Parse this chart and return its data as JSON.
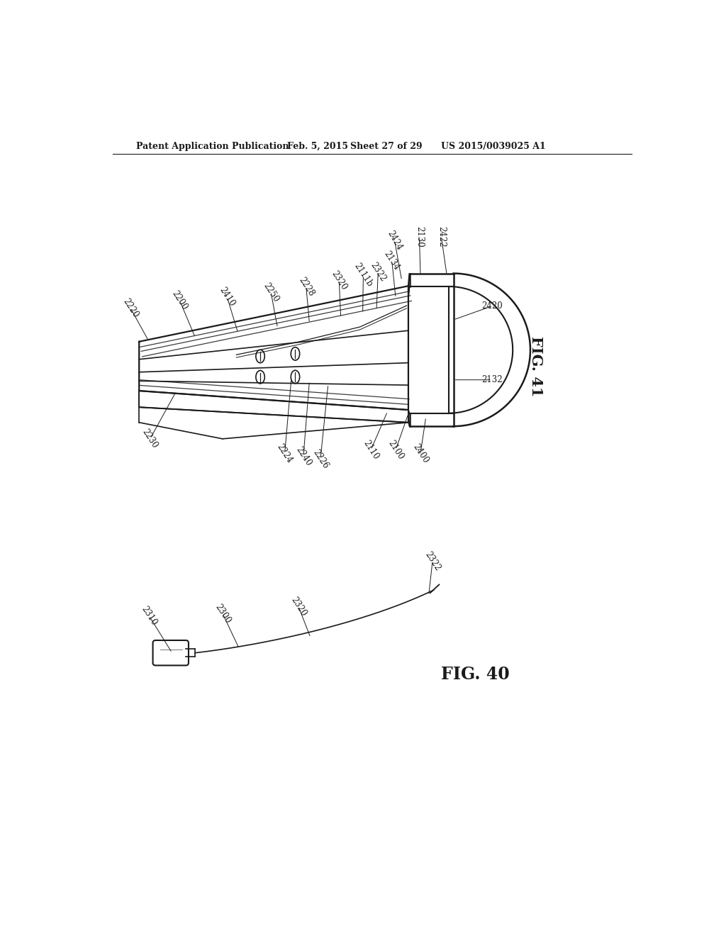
{
  "background_color": "#ffffff",
  "header_text": "Patent Application Publication",
  "header_date": "Feb. 5, 2015",
  "header_sheet": "Sheet 27 of 29",
  "header_patent": "US 2015/0039025 A1",
  "fig41_label": "FIG. 41",
  "fig40_label": "FIG. 40",
  "label_color": "#1a1a1a",
  "line_color": "#1a1a1a"
}
